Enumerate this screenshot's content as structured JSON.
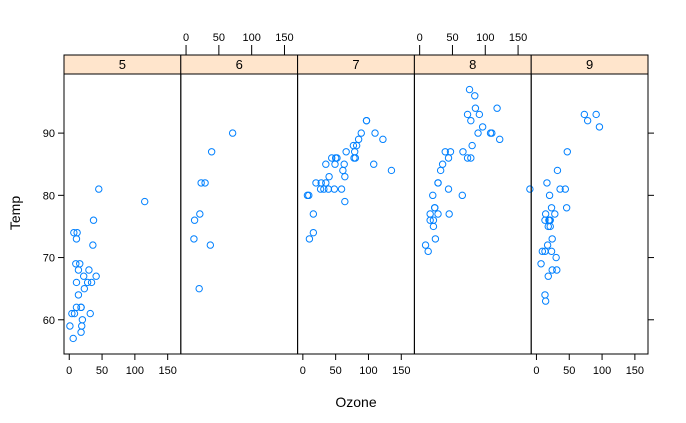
{
  "chart_data": {
    "type": "scatter",
    "layout": "lattice-panels",
    "xlabel": "Ozone",
    "ylabel": "Temp",
    "xlim": [
      -8,
      170
    ],
    "ylim": [
      54.5,
      99.5
    ],
    "x_ticks": [
      0,
      50,
      100,
      150
    ],
    "y_ticks": [
      60,
      70,
      80,
      90
    ],
    "point_color": "#0080ff",
    "strip_color": "#ffe5cc",
    "panels": [
      {
        "label": "5",
        "points": [
          [
            41,
            67
          ],
          [
            36,
            72
          ],
          [
            12,
            74
          ],
          [
            18,
            62
          ],
          [
            28,
            66
          ],
          [
            23,
            65
          ],
          [
            19,
            59
          ],
          [
            8,
            61
          ],
          [
            7,
            74
          ],
          [
            16,
            69
          ],
          [
            11,
            66
          ],
          [
            14,
            68
          ],
          [
            18,
            58
          ],
          [
            14,
            64
          ],
          [
            34,
            66
          ],
          [
            6,
            57
          ],
          [
            30,
            68
          ],
          [
            11,
            62
          ],
          [
            1,
            59
          ],
          [
            11,
            73
          ],
          [
            4,
            61
          ],
          [
            32,
            61
          ],
          [
            37,
            76
          ],
          [
            45,
            81
          ],
          [
            115,
            79
          ],
          [
            10,
            69
          ],
          [
            18,
            62
          ],
          [
            22,
            67
          ],
          [
            20,
            60
          ]
        ]
      },
      {
        "label": "6",
        "points": [
          [
            29,
            82
          ],
          [
            71,
            90
          ],
          [
            39,
            87
          ],
          [
            23,
            82
          ],
          [
            21,
            77
          ],
          [
            37,
            72
          ],
          [
            20,
            65
          ],
          [
            12,
            73
          ],
          [
            13,
            76
          ]
        ]
      },
      {
        "label": "7",
        "points": [
          [
            135,
            84
          ],
          [
            49,
            85
          ],
          [
            32,
            81
          ],
          [
            64,
            83
          ],
          [
            40,
            83
          ],
          [
            77,
            88
          ],
          [
            97,
            92
          ],
          [
            97,
            92
          ],
          [
            85,
            89
          ],
          [
            10,
            73
          ],
          [
            27,
            81
          ],
          [
            7,
            80
          ],
          [
            48,
            81
          ],
          [
            35,
            82
          ],
          [
            61,
            84
          ],
          [
            79,
            87
          ],
          [
            63,
            85
          ],
          [
            16,
            74
          ],
          [
            80,
            86
          ],
          [
            108,
            85
          ],
          [
            20,
            82
          ],
          [
            52,
            86
          ],
          [
            82,
            88
          ],
          [
            50,
            86
          ],
          [
            64,
            79
          ],
          [
            59,
            81
          ],
          [
            39,
            81
          ],
          [
            9,
            80
          ],
          [
            16,
            77
          ],
          [
            78,
            86
          ],
          [
            35,
            85
          ],
          [
            66,
            87
          ],
          [
            122,
            89
          ],
          [
            89,
            90
          ],
          [
            110,
            90
          ],
          [
            44,
            86
          ],
          [
            28,
            82
          ]
        ]
      },
      {
        "label": "8",
        "points": [
          [
            39,
            87
          ],
          [
            80,
            88
          ],
          [
            108,
            90
          ],
          [
            28,
            82
          ],
          [
            16,
            77
          ],
          [
            78,
            86
          ],
          [
            35,
            85
          ],
          [
            66,
            87
          ],
          [
            122,
            89
          ],
          [
            89,
            90
          ],
          [
            110,
            90
          ],
          [
            44,
            86
          ],
          [
            28,
            82
          ],
          [
            65,
            80
          ],
          [
            168,
            81
          ],
          [
            73,
            86
          ],
          [
            76,
            97
          ],
          [
            118,
            94
          ],
          [
            84,
            96
          ],
          [
            85,
            94
          ],
          [
            96,
            91
          ],
          [
            78,
            92
          ],
          [
            73,
            93
          ],
          [
            91,
            93
          ],
          [
            47,
            87
          ],
          [
            32,
            84
          ],
          [
            20,
            80
          ],
          [
            23,
            78
          ],
          [
            21,
            75
          ],
          [
            24,
            73
          ],
          [
            44,
            81
          ],
          [
            21,
            76
          ],
          [
            28,
            77
          ],
          [
            9,
            72
          ],
          [
            45,
            77
          ],
          [
            16,
            76
          ],
          [
            13,
            71
          ],
          [
            23,
            78
          ]
        ]
      },
      {
        "label": "9",
        "points": [
          [
            96,
            91
          ],
          [
            78,
            92
          ],
          [
            73,
            93
          ],
          [
            91,
            93
          ],
          [
            47,
            87
          ],
          [
            32,
            84
          ],
          [
            20,
            80
          ],
          [
            23,
            78
          ],
          [
            21,
            75
          ],
          [
            24,
            73
          ],
          [
            44,
            81
          ],
          [
            21,
            76
          ],
          [
            28,
            77
          ],
          [
            9,
            71
          ],
          [
            13,
            71
          ],
          [
            46,
            78
          ],
          [
            18,
            67
          ],
          [
            13,
            76
          ],
          [
            24,
            68
          ],
          [
            16,
            82
          ],
          [
            13,
            64
          ],
          [
            23,
            71
          ],
          [
            36,
            81
          ],
          [
            7,
            69
          ],
          [
            14,
            63
          ],
          [
            30,
            70
          ],
          [
            14,
            77
          ],
          [
            18,
            75
          ],
          [
            20,
            76
          ],
          [
            31,
            68
          ],
          [
            17,
            72
          ],
          [
            19,
            76
          ]
        ]
      }
    ]
  }
}
